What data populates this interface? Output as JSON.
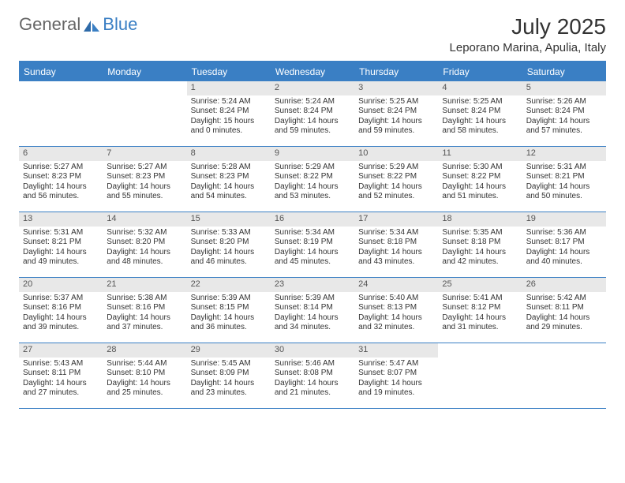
{
  "logo": {
    "text1": "General",
    "text2": "Blue"
  },
  "title": "July 2025",
  "subtitle": "Leporano Marina, Apulia, Italy",
  "colors": {
    "accent": "#3a7fc4",
    "header_text": "#ffffff",
    "daynum_bg": "#e8e8e8",
    "text": "#333333",
    "logo_gray": "#666666"
  },
  "weekdays": [
    "Sunday",
    "Monday",
    "Tuesday",
    "Wednesday",
    "Thursday",
    "Friday",
    "Saturday"
  ],
  "weeks": [
    [
      null,
      null,
      {
        "n": "1",
        "sr": "Sunrise: 5:24 AM",
        "ss": "Sunset: 8:24 PM",
        "d1": "Daylight: 15 hours",
        "d2": "and 0 minutes."
      },
      {
        "n": "2",
        "sr": "Sunrise: 5:24 AM",
        "ss": "Sunset: 8:24 PM",
        "d1": "Daylight: 14 hours",
        "d2": "and 59 minutes."
      },
      {
        "n": "3",
        "sr": "Sunrise: 5:25 AM",
        "ss": "Sunset: 8:24 PM",
        "d1": "Daylight: 14 hours",
        "d2": "and 59 minutes."
      },
      {
        "n": "4",
        "sr": "Sunrise: 5:25 AM",
        "ss": "Sunset: 8:24 PM",
        "d1": "Daylight: 14 hours",
        "d2": "and 58 minutes."
      },
      {
        "n": "5",
        "sr": "Sunrise: 5:26 AM",
        "ss": "Sunset: 8:24 PM",
        "d1": "Daylight: 14 hours",
        "d2": "and 57 minutes."
      }
    ],
    [
      {
        "n": "6",
        "sr": "Sunrise: 5:27 AM",
        "ss": "Sunset: 8:23 PM",
        "d1": "Daylight: 14 hours",
        "d2": "and 56 minutes."
      },
      {
        "n": "7",
        "sr": "Sunrise: 5:27 AM",
        "ss": "Sunset: 8:23 PM",
        "d1": "Daylight: 14 hours",
        "d2": "and 55 minutes."
      },
      {
        "n": "8",
        "sr": "Sunrise: 5:28 AM",
        "ss": "Sunset: 8:23 PM",
        "d1": "Daylight: 14 hours",
        "d2": "and 54 minutes."
      },
      {
        "n": "9",
        "sr": "Sunrise: 5:29 AM",
        "ss": "Sunset: 8:22 PM",
        "d1": "Daylight: 14 hours",
        "d2": "and 53 minutes."
      },
      {
        "n": "10",
        "sr": "Sunrise: 5:29 AM",
        "ss": "Sunset: 8:22 PM",
        "d1": "Daylight: 14 hours",
        "d2": "and 52 minutes."
      },
      {
        "n": "11",
        "sr": "Sunrise: 5:30 AM",
        "ss": "Sunset: 8:22 PM",
        "d1": "Daylight: 14 hours",
        "d2": "and 51 minutes."
      },
      {
        "n": "12",
        "sr": "Sunrise: 5:31 AM",
        "ss": "Sunset: 8:21 PM",
        "d1": "Daylight: 14 hours",
        "d2": "and 50 minutes."
      }
    ],
    [
      {
        "n": "13",
        "sr": "Sunrise: 5:31 AM",
        "ss": "Sunset: 8:21 PM",
        "d1": "Daylight: 14 hours",
        "d2": "and 49 minutes."
      },
      {
        "n": "14",
        "sr": "Sunrise: 5:32 AM",
        "ss": "Sunset: 8:20 PM",
        "d1": "Daylight: 14 hours",
        "d2": "and 48 minutes."
      },
      {
        "n": "15",
        "sr": "Sunrise: 5:33 AM",
        "ss": "Sunset: 8:20 PM",
        "d1": "Daylight: 14 hours",
        "d2": "and 46 minutes."
      },
      {
        "n": "16",
        "sr": "Sunrise: 5:34 AM",
        "ss": "Sunset: 8:19 PM",
        "d1": "Daylight: 14 hours",
        "d2": "and 45 minutes."
      },
      {
        "n": "17",
        "sr": "Sunrise: 5:34 AM",
        "ss": "Sunset: 8:18 PM",
        "d1": "Daylight: 14 hours",
        "d2": "and 43 minutes."
      },
      {
        "n": "18",
        "sr": "Sunrise: 5:35 AM",
        "ss": "Sunset: 8:18 PM",
        "d1": "Daylight: 14 hours",
        "d2": "and 42 minutes."
      },
      {
        "n": "19",
        "sr": "Sunrise: 5:36 AM",
        "ss": "Sunset: 8:17 PM",
        "d1": "Daylight: 14 hours",
        "d2": "and 40 minutes."
      }
    ],
    [
      {
        "n": "20",
        "sr": "Sunrise: 5:37 AM",
        "ss": "Sunset: 8:16 PM",
        "d1": "Daylight: 14 hours",
        "d2": "and 39 minutes."
      },
      {
        "n": "21",
        "sr": "Sunrise: 5:38 AM",
        "ss": "Sunset: 8:16 PM",
        "d1": "Daylight: 14 hours",
        "d2": "and 37 minutes."
      },
      {
        "n": "22",
        "sr": "Sunrise: 5:39 AM",
        "ss": "Sunset: 8:15 PM",
        "d1": "Daylight: 14 hours",
        "d2": "and 36 minutes."
      },
      {
        "n": "23",
        "sr": "Sunrise: 5:39 AM",
        "ss": "Sunset: 8:14 PM",
        "d1": "Daylight: 14 hours",
        "d2": "and 34 minutes."
      },
      {
        "n": "24",
        "sr": "Sunrise: 5:40 AM",
        "ss": "Sunset: 8:13 PM",
        "d1": "Daylight: 14 hours",
        "d2": "and 32 minutes."
      },
      {
        "n": "25",
        "sr": "Sunrise: 5:41 AM",
        "ss": "Sunset: 8:12 PM",
        "d1": "Daylight: 14 hours",
        "d2": "and 31 minutes."
      },
      {
        "n": "26",
        "sr": "Sunrise: 5:42 AM",
        "ss": "Sunset: 8:11 PM",
        "d1": "Daylight: 14 hours",
        "d2": "and 29 minutes."
      }
    ],
    [
      {
        "n": "27",
        "sr": "Sunrise: 5:43 AM",
        "ss": "Sunset: 8:11 PM",
        "d1": "Daylight: 14 hours",
        "d2": "and 27 minutes."
      },
      {
        "n": "28",
        "sr": "Sunrise: 5:44 AM",
        "ss": "Sunset: 8:10 PM",
        "d1": "Daylight: 14 hours",
        "d2": "and 25 minutes."
      },
      {
        "n": "29",
        "sr": "Sunrise: 5:45 AM",
        "ss": "Sunset: 8:09 PM",
        "d1": "Daylight: 14 hours",
        "d2": "and 23 minutes."
      },
      {
        "n": "30",
        "sr": "Sunrise: 5:46 AM",
        "ss": "Sunset: 8:08 PM",
        "d1": "Daylight: 14 hours",
        "d2": "and 21 minutes."
      },
      {
        "n": "31",
        "sr": "Sunrise: 5:47 AM",
        "ss": "Sunset: 8:07 PM",
        "d1": "Daylight: 14 hours",
        "d2": "and 19 minutes."
      },
      null,
      null
    ]
  ]
}
